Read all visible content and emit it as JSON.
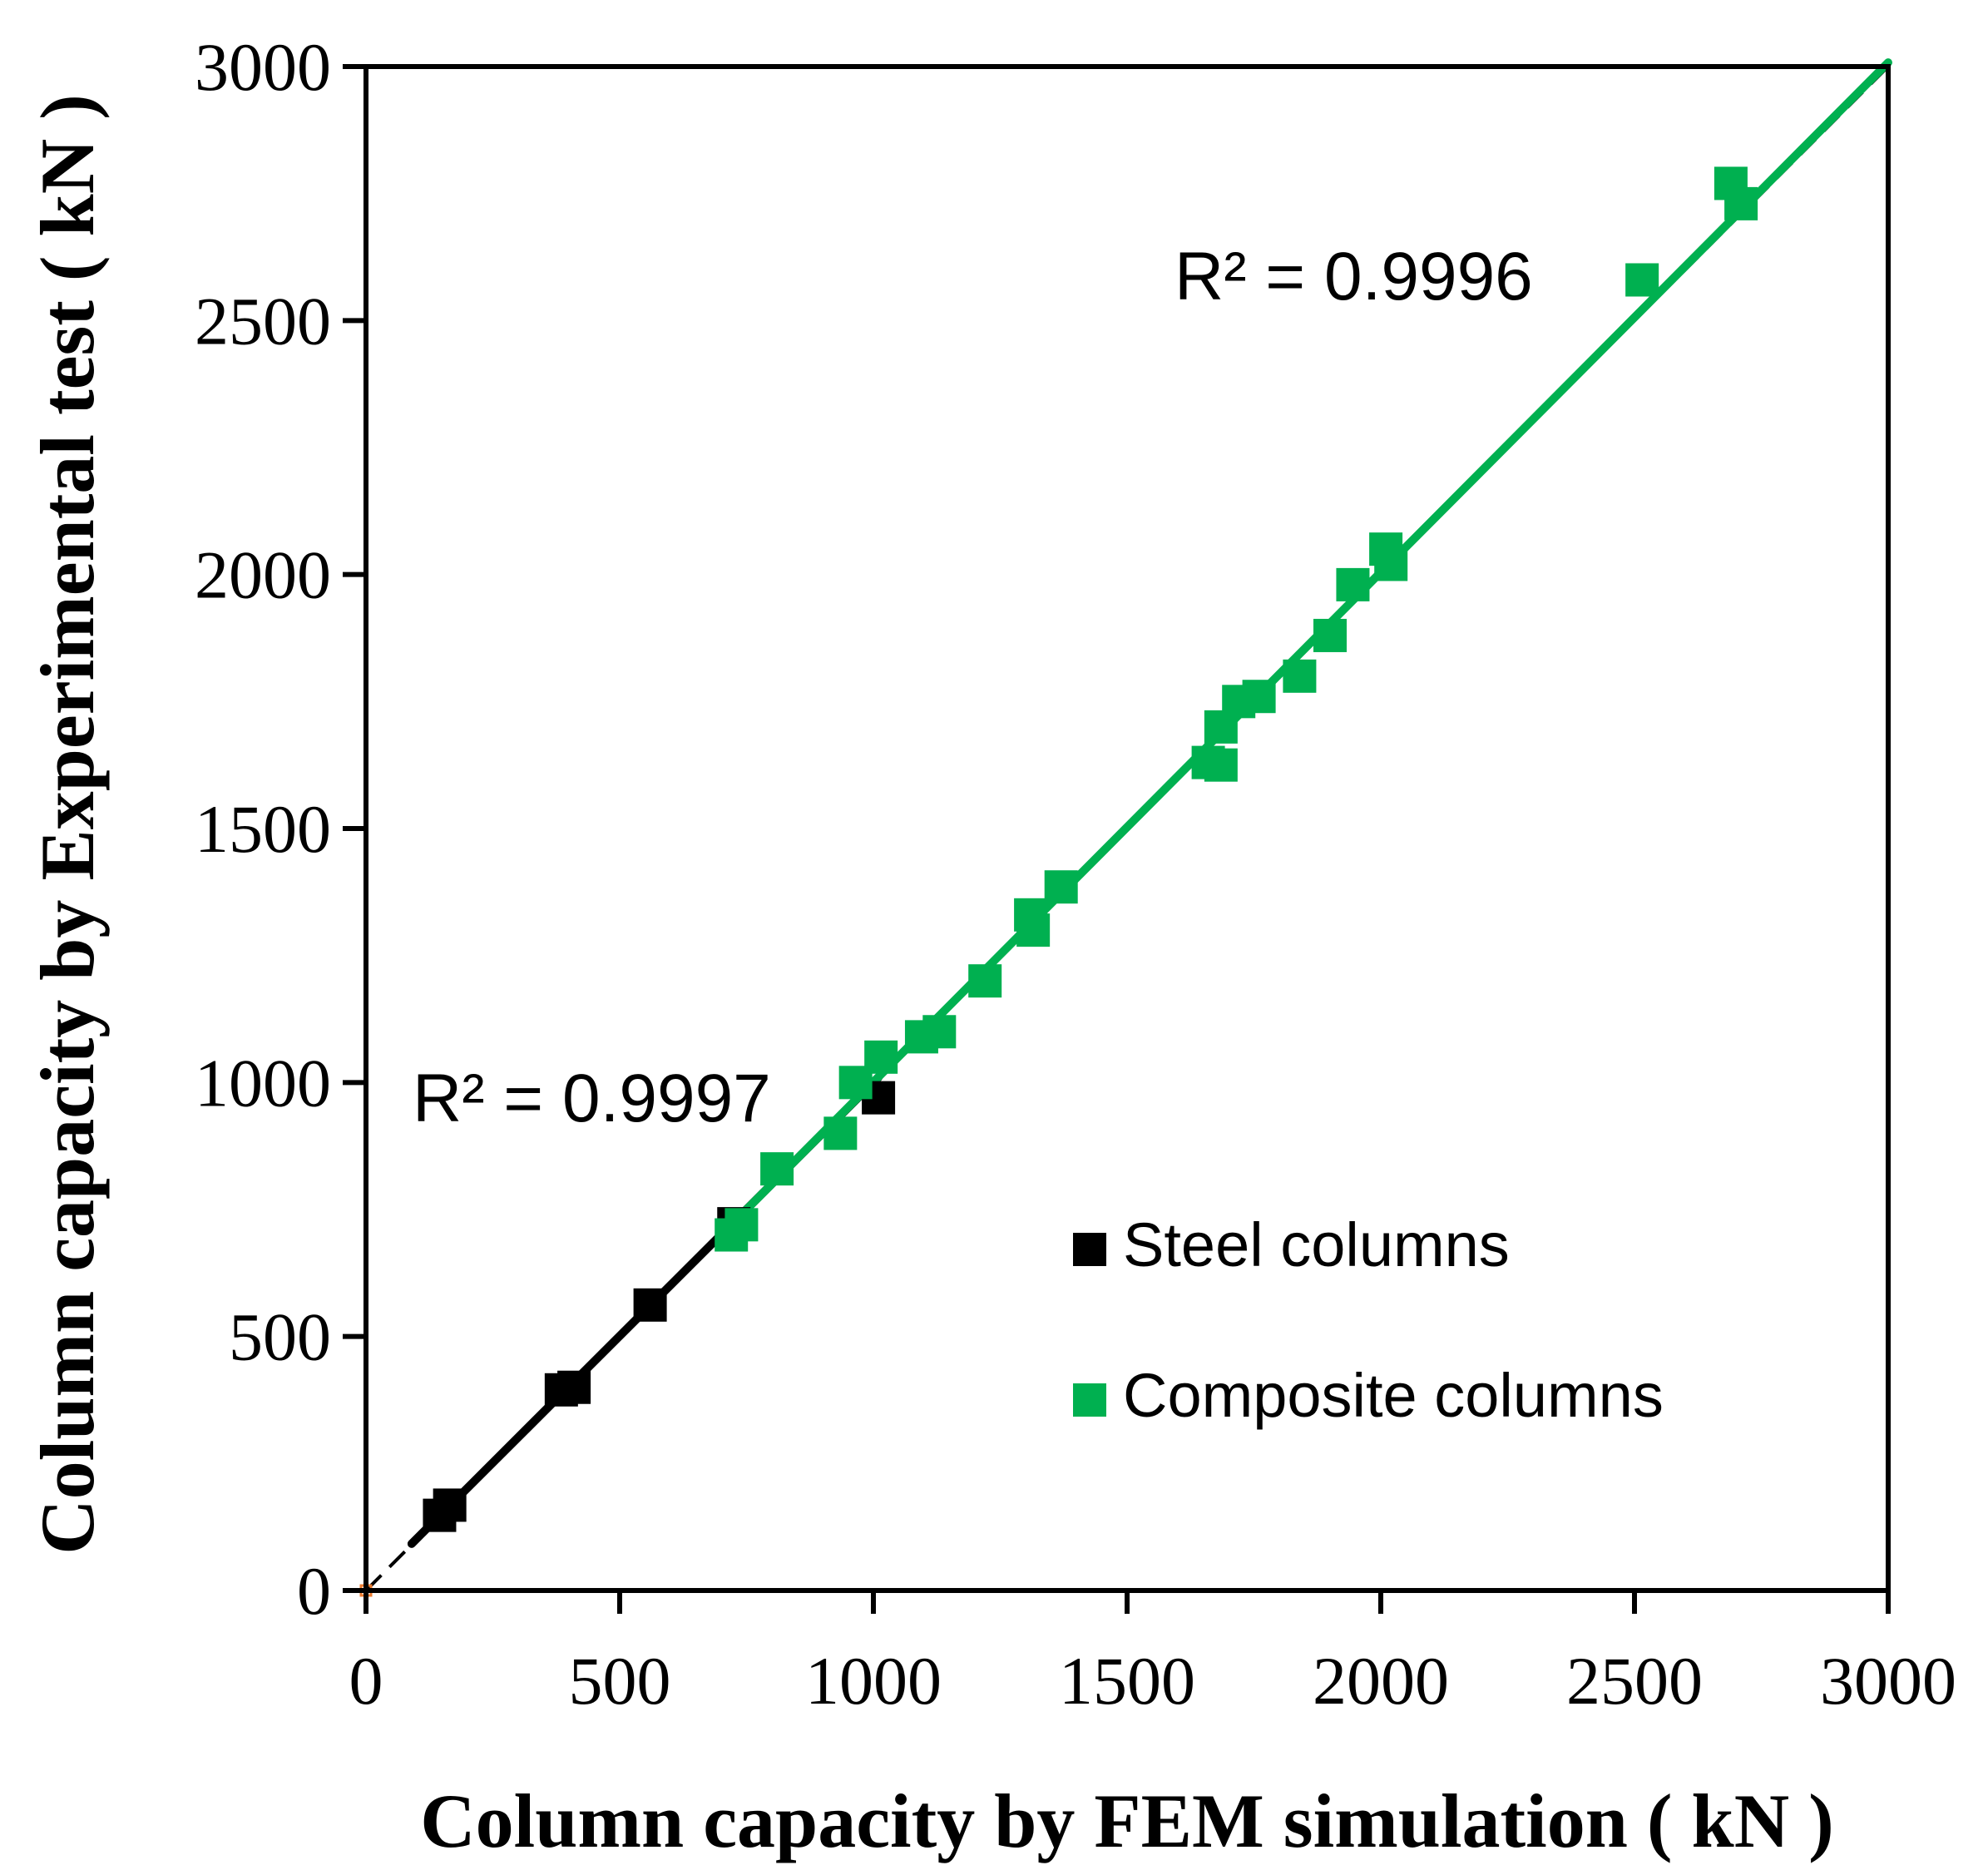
{
  "chart_data": {
    "type": "scatter",
    "title": "",
    "xlabel": "Column capacity by FEM  simulation ( kN )",
    "ylabel": "Column capacity by Experimental test ( kN )",
    "xlim": [
      0,
      3000
    ],
    "ylim": [
      0,
      3000
    ],
    "xticks": [
      "0",
      "500",
      "1000",
      "1500",
      "2000",
      "2500",
      "3000"
    ],
    "yticks": [
      "0",
      "500",
      "1000",
      "1500",
      "2000",
      "2500",
      "3000"
    ],
    "grid": false,
    "legend_position": "bottom-right",
    "reference_line": {
      "name": "1:1 line",
      "style": "dashed",
      "color": "#000000",
      "x": [
        0,
        3000
      ],
      "y": [
        0,
        3000
      ]
    },
    "origin_marker": {
      "x": 0,
      "y": 0,
      "color": "#ED7D31"
    },
    "series": [
      {
        "name": "Steel columns",
        "color": "#000000",
        "points": [
          [
            145,
            148
          ],
          [
            165,
            168
          ],
          [
            385,
            395
          ],
          [
            410,
            400
          ],
          [
            560,
            562
          ],
          [
            725,
            722
          ],
          [
            1010,
            970
          ]
        ],
        "trendline": {
          "x": [
            90,
            1010
          ],
          "y": [
            92,
            1010
          ]
        },
        "r2_label": "R² = 0.9997"
      },
      {
        "name": "Composite columns",
        "color": "#00B050",
        "points": [
          [
            720,
            700
          ],
          [
            740,
            720
          ],
          [
            810,
            830
          ],
          [
            935,
            900
          ],
          [
            965,
            1000
          ],
          [
            1015,
            1050
          ],
          [
            1095,
            1090
          ],
          [
            1130,
            1100
          ],
          [
            1220,
            1200
          ],
          [
            1310,
            1330
          ],
          [
            1315,
            1300
          ],
          [
            1370,
            1385
          ],
          [
            1660,
            1630
          ],
          [
            1685,
            1625
          ],
          [
            1685,
            1700
          ],
          [
            1720,
            1750
          ],
          [
            1760,
            1760
          ],
          [
            1840,
            1800
          ],
          [
            1900,
            1880
          ],
          [
            1945,
            1980
          ],
          [
            2010,
            2050
          ],
          [
            2020,
            2020
          ],
          [
            2515,
            2580
          ],
          [
            2690,
            2770
          ],
          [
            2710,
            2730
          ]
        ],
        "trendline": {
          "x": [
            720,
            3000
          ],
          "y": [
            720,
            3008
          ]
        },
        "r2_label": "R² = 0.9996"
      }
    ]
  }
}
